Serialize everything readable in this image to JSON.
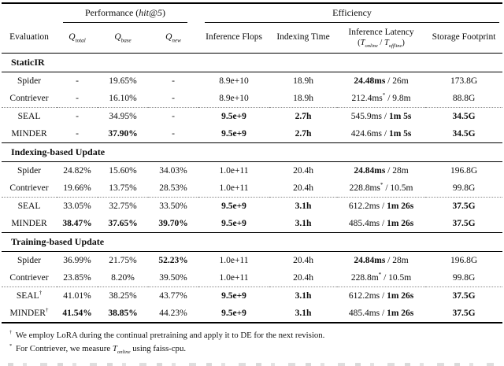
{
  "table": {
    "group_headers": [
      {
        "span": 1,
        "name": "group-header-empty",
        "label": "",
        "underline": false
      },
      {
        "span": 3,
        "name": "group-header-performance",
        "underline": true,
        "cls": "cmid-perf",
        "label": [
          {
            "t": "Performance ("
          },
          {
            "t": "hit@5",
            "i": true
          },
          {
            "t": ")"
          }
        ]
      },
      {
        "span": 4,
        "name": "group-header-efficiency",
        "underline": true,
        "cls": "cmid-eff",
        "label": "Efficiency"
      }
    ],
    "columns": [
      {
        "name": "col-header-evaluation",
        "header": "Evaluation"
      },
      {
        "name": "col-header-q-total",
        "header": [
          {
            "t": "Q",
            "i": true
          },
          {
            "t": "total",
            "i": true,
            "sub": true
          }
        ]
      },
      {
        "name": "col-header-q-base",
        "header": [
          {
            "t": "Q",
            "i": true
          },
          {
            "t": "base",
            "i": true,
            "sub": true
          }
        ]
      },
      {
        "name": "col-header-q-new",
        "header": [
          {
            "t": "Q",
            "i": true
          },
          {
            "t": "new",
            "i": true,
            "sub": true
          }
        ]
      },
      {
        "name": "col-header-inference-flops",
        "header": "Inference Flops"
      },
      {
        "name": "col-header-indexing-time",
        "header": "Indexing Time"
      },
      {
        "name": "col-header-inference-latency",
        "header": {
          "lines": [
            "Inference Latency",
            [
              {
                "t": "("
              },
              {
                "t": "T",
                "i": true
              },
              {
                "t": "online",
                "i": true,
                "sub": true
              },
              {
                "t": " / "
              },
              {
                "t": "T",
                "i": true
              },
              {
                "t": "offline",
                "i": true,
                "sub": true
              },
              {
                "t": ")"
              }
            ]
          ]
        }
      },
      {
        "name": "col-header-storage-footprint",
        "header": "Storage Footprint"
      }
    ],
    "sections": [
      {
        "title": "StaticIR",
        "rows": [
          {
            "cells": [
              "Spider",
              "-",
              "19.65%",
              "-",
              "8.9e+10",
              "18.9h",
              [
                {
                  "t": "24.48ms",
                  "b": true
                },
                {
                  "t": " / 26m"
                }
              ],
              "173.8G"
            ]
          },
          {
            "divider": true,
            "cells": [
              "Contriever",
              "-",
              "16.10%",
              "-",
              "8.9e+10",
              "18.9h",
              [
                {
                  "t": "212.4ms"
                },
                {
                  "t": "*",
                  "sup": true
                },
                {
                  "t": " / 9.8m"
                }
              ],
              "88.8G"
            ]
          },
          {
            "cells": [
              "SEAL",
              "-",
              "34.95%",
              "-",
              {
                "t": "9.5e+9",
                "b": true
              },
              {
                "t": "2.7h",
                "b": true
              },
              [
                {
                  "t": "545.9ms / "
                },
                {
                  "t": "1m 5s",
                  "b": true
                }
              ],
              {
                "t": "34.5G",
                "b": true
              }
            ]
          },
          {
            "cells": [
              "MINDER",
              "-",
              {
                "t": "37.90%",
                "b": true
              },
              "-",
              {
                "t": "9.5e+9",
                "b": true
              },
              {
                "t": "2.7h",
                "b": true
              },
              [
                {
                  "t": "424.6ms / "
                },
                {
                  "t": "1m 5s",
                  "b": true
                }
              ],
              {
                "t": "34.5G",
                "b": true
              }
            ]
          }
        ]
      },
      {
        "title": "Indexing-based Update",
        "rows": [
          {
            "cells": [
              "Spider",
              "24.82%",
              "15.60%",
              "34.03%",
              "1.0e+11",
              "20.4h",
              [
                {
                  "t": "24.84ms",
                  "b": true
                },
                {
                  "t": " / 28m"
                }
              ],
              "196.8G"
            ]
          },
          {
            "divider": true,
            "cells": [
              "Contriever",
              "19.66%",
              "13.75%",
              "28.53%",
              "1.0e+11",
              "20.4h",
              [
                {
                  "t": "228.8ms"
                },
                {
                  "t": "*",
                  "sup": true
                },
                {
                  "t": " / 10.5m"
                }
              ],
              "99.8G"
            ]
          },
          {
            "cells": [
              "SEAL",
              "33.05%",
              "32.75%",
              "33.50%",
              {
                "t": "9.5e+9",
                "b": true
              },
              {
                "t": "3.1h",
                "b": true
              },
              [
                {
                  "t": "612.2ms / "
                },
                {
                  "t": "1m 26s",
                  "b": true
                }
              ],
              {
                "t": "37.5G",
                "b": true
              }
            ]
          },
          {
            "cells": [
              "MINDER",
              {
                "t": "38.47%",
                "b": true
              },
              {
                "t": "37.65%",
                "b": true
              },
              {
                "t": "39.70%",
                "b": true
              },
              {
                "t": "9.5e+9",
                "b": true
              },
              {
                "t": "3.1h",
                "b": true
              },
              [
                {
                  "t": "485.4ms / "
                },
                {
                  "t": "1m 26s",
                  "b": true
                }
              ],
              {
                "t": "37.5G",
                "b": true
              }
            ]
          }
        ]
      },
      {
        "title": "Training-based Update",
        "rows": [
          {
            "cells": [
              "Spider",
              "36.99%",
              "21.75%",
              {
                "t": "52.23%",
                "b": true
              },
              "1.0e+11",
              "20.4h",
              [
                {
                  "t": "24.84ms",
                  "b": true
                },
                {
                  "t": " / 28m"
                }
              ],
              "196.8G"
            ]
          },
          {
            "divider": true,
            "cells": [
              "Contriever",
              "23.85%",
              "8.20%",
              "39.50%",
              "1.0e+11",
              "20.4h",
              [
                {
                  "t": "228.8m"
                },
                {
                  "t": "*",
                  "sup": true
                },
                {
                  "t": " / 10.5m"
                }
              ],
              "99.8G"
            ]
          },
          {
            "cells": [
              [
                {
                  "t": "SEAL"
                },
                {
                  "t": "†",
                  "sup": true
                }
              ],
              "41.01%",
              "38.25%",
              "43.77%",
              {
                "t": "9.5e+9",
                "b": true
              },
              {
                "t": "3.1h",
                "b": true
              },
              [
                {
                  "t": "612.2ms / "
                },
                {
                  "t": "1m 26s",
                  "b": true
                }
              ],
              {
                "t": "37.5G",
                "b": true
              }
            ]
          },
          {
            "cells": [
              [
                {
                  "t": "MINDER"
                },
                {
                  "t": "†",
                  "sup": true
                }
              ],
              {
                "t": "41.54%",
                "b": true
              },
              {
                "t": "38.85%",
                "b": true
              },
              "44.23%",
              {
                "t": "9.5e+9",
                "b": true
              },
              {
                "t": "3.1h",
                "b": true
              },
              [
                {
                  "t": "485.4ms / "
                },
                {
                  "t": "1m 26s",
                  "b": true
                }
              ],
              {
                "t": "37.5G",
                "b": true
              }
            ]
          }
        ]
      }
    ]
  },
  "footnotes": [
    [
      {
        "t": "†",
        "sup": true
      },
      {
        "t": " We employ LoRA during the continual pretraining and apply it to DE for the next revision."
      }
    ],
    [
      {
        "t": "*",
        "sup": true
      },
      {
        "t": " For Contriever, we measure "
      },
      {
        "t": "T",
        "i": true
      },
      {
        "t": "online",
        "i": true,
        "sub": true
      },
      {
        "t": " using faiss-cpu."
      }
    ]
  ]
}
